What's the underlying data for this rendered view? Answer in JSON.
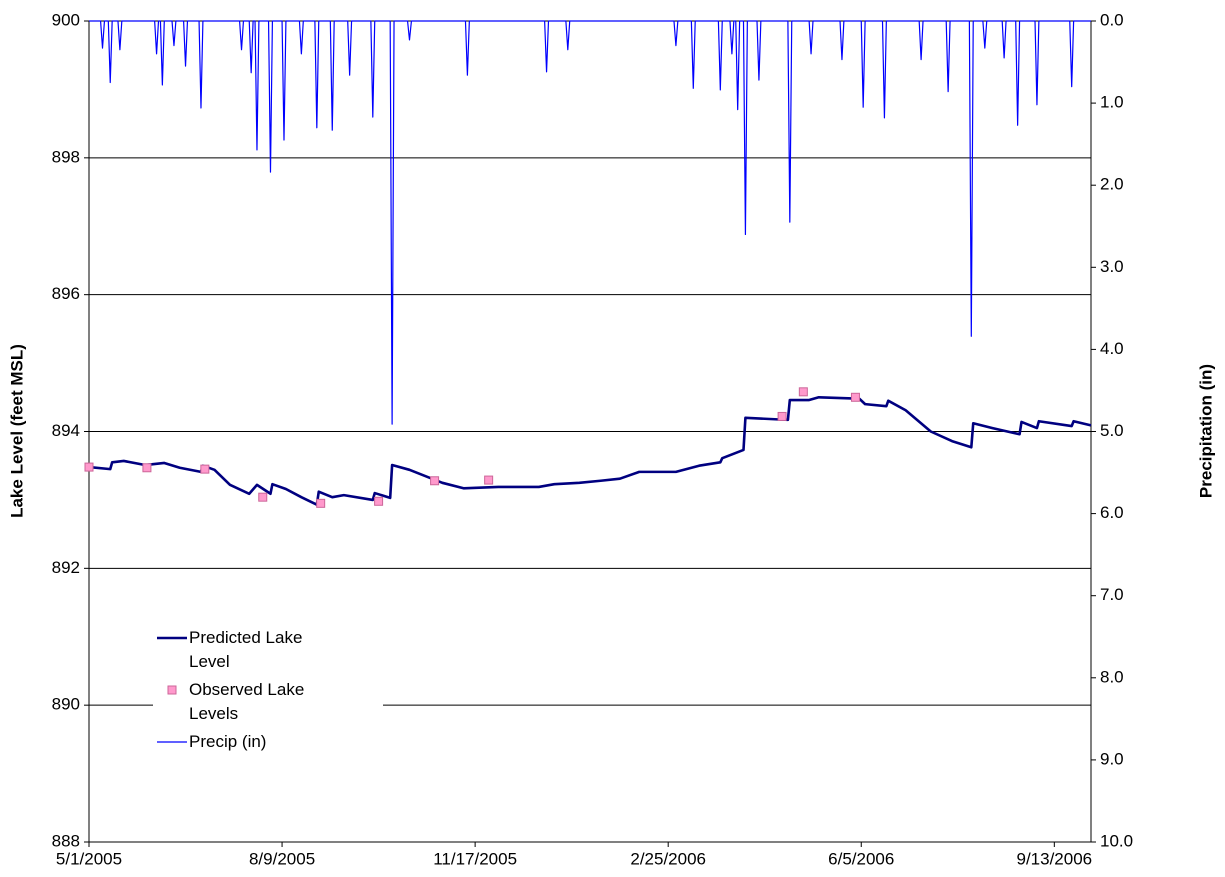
{
  "chart_data": {
    "type": "line",
    "ylabel": "Lake Level (feet MSL)",
    "y2label": "Precipitation  (in)",
    "xlim": [
      "2005-05-01",
      "2006-10-02"
    ],
    "xticks": [
      {
        "value": "2005-05-01",
        "label": "5/1/2005"
      },
      {
        "value": "2005-08-09",
        "label": "8/9/2005"
      },
      {
        "value": "2005-11-17",
        "label": "11/17/2005"
      },
      {
        "value": "2006-02-25",
        "label": "2/25/2006"
      },
      {
        "value": "2006-06-05",
        "label": "6/5/2006"
      },
      {
        "value": "2006-09-13",
        "label": "9/13/2006"
      }
    ],
    "ylim": [
      888,
      900
    ],
    "yticks": [
      888,
      890,
      892,
      894,
      896,
      898,
      900
    ],
    "y2lim": [
      10,
      0
    ],
    "y2ticks": [
      {
        "value": 0,
        "label": "0.0"
      },
      {
        "value": 1,
        "label": "1.0"
      },
      {
        "value": 2,
        "label": "2.0"
      },
      {
        "value": 3,
        "label": "3.0"
      },
      {
        "value": 4,
        "label": "4.0"
      },
      {
        "value": 5,
        "label": "5.0"
      },
      {
        "value": 6,
        "label": "6.0"
      },
      {
        "value": 7,
        "label": "7.0"
      },
      {
        "value": 8,
        "label": "8.0"
      },
      {
        "value": 9,
        "label": "9.0"
      },
      {
        "value": 10,
        "label": "10.0"
      }
    ],
    "grid": true,
    "legend": "center left",
    "series": [
      {
        "name": "Predicted Lake Level",
        "type": "line",
        "color": "#000080",
        "x": [
          "2005-05-01",
          "2005-05-12",
          "2005-05-13",
          "2005-05-19",
          "2005-05-30",
          "2005-06-09",
          "2005-06-17",
          "2005-06-28",
          "2005-06-29",
          "2005-07-05",
          "2005-07-13",
          "2005-07-23",
          "2005-07-27",
          "2005-08-03",
          "2005-08-04",
          "2005-08-11",
          "2005-08-19",
          "2005-08-27",
          "2005-08-28",
          "2005-09-04",
          "2005-09-10",
          "2005-09-25",
          "2005-09-26",
          "2005-10-04",
          "2005-10-05",
          "2005-10-14",
          "2005-10-31",
          "2005-11-11",
          "2005-11-29",
          "2005-12-20",
          "2005-12-28",
          "2006-01-10",
          "2006-01-21",
          "2006-01-31",
          "2006-02-10",
          "2006-03-01",
          "2006-03-13",
          "2006-03-24",
          "2006-03-25",
          "2006-04-05",
          "2006-04-06",
          "2006-04-28",
          "2006-04-29",
          "2006-05-09",
          "2006-05-14",
          "2006-06-04",
          "2006-06-07",
          "2006-06-18",
          "2006-06-19",
          "2006-06-28",
          "2006-07-11",
          "2006-07-22",
          "2006-08-01",
          "2006-08-02",
          "2006-08-12",
          "2006-08-26",
          "2006-08-27",
          "2006-09-04",
          "2006-09-05",
          "2006-09-22",
          "2006-09-23",
          "2006-10-02"
        ],
        "values": [
          893.48,
          893.45,
          893.55,
          893.57,
          893.51,
          893.54,
          893.47,
          893.41,
          893.5,
          893.44,
          893.22,
          893.09,
          893.22,
          893.09,
          893.23,
          893.16,
          893.04,
          892.93,
          893.12,
          893.04,
          893.07,
          893.0,
          893.1,
          893.03,
          893.51,
          893.44,
          893.25,
          893.17,
          893.19,
          893.19,
          893.23,
          893.25,
          893.28,
          893.31,
          893.41,
          893.41,
          893.5,
          893.55,
          893.61,
          893.73,
          894.2,
          894.17,
          894.46,
          894.46,
          894.5,
          894.48,
          894.4,
          894.37,
          894.45,
          894.31,
          894.0,
          893.86,
          893.77,
          894.12,
          894.05,
          893.96,
          894.14,
          894.05,
          894.15,
          894.08,
          894.15,
          894.09
        ]
      },
      {
        "name": "Observed Lake Levels",
        "type": "scatter",
        "color": "#ff99cc",
        "edgecolor": "#cc6699",
        "marker": "square",
        "x": [
          "2005-05-01",
          "2005-05-31",
          "2005-06-30",
          "2005-07-30",
          "2005-08-29",
          "2005-09-28",
          "2005-10-27",
          "2005-11-24",
          "2006-04-25",
          "2006-05-06",
          "2006-06-02"
        ],
        "values": [
          893.48,
          893.47,
          893.45,
          893.04,
          892.95,
          892.98,
          893.28,
          893.29,
          894.22,
          894.58,
          894.5
        ]
      },
      {
        "name": "Precip (in)",
        "type": "line",
        "color": "#0000ff",
        "axis": "y2",
        "x": [
          "2005-05-01",
          "2005-05-07",
          "2005-05-08",
          "2005-05-09",
          "2005-05-11",
          "2005-05-12",
          "2005-05-13",
          "2005-05-16",
          "2005-05-17",
          "2005-05-18",
          "2005-06-04",
          "2005-06-05",
          "2005-06-06",
          "2005-06-07",
          "2005-06-08",
          "2005-06-09",
          "2005-06-13",
          "2005-06-14",
          "2005-06-15",
          "2005-06-19",
          "2005-06-20",
          "2005-06-21",
          "2005-06-27",
          "2005-06-28",
          "2005-06-29",
          "2005-07-18",
          "2005-07-19",
          "2005-07-20",
          "2005-07-23",
          "2005-07-24",
          "2005-07-25",
          "2005-07-26",
          "2005-07-27",
          "2005-07-28",
          "2005-08-02",
          "2005-08-03",
          "2005-08-04",
          "2005-08-09",
          "2005-08-10",
          "2005-08-11",
          "2005-08-18",
          "2005-08-19",
          "2005-08-20",
          "2005-08-26",
          "2005-08-27",
          "2005-08-28",
          "2005-09-03",
          "2005-09-04",
          "2005-09-05",
          "2005-09-12",
          "2005-09-13",
          "2005-09-14",
          "2005-09-24",
          "2005-09-25",
          "2005-09-26",
          "2005-10-04",
          "2005-10-05",
          "2005-10-06",
          "2005-10-13",
          "2005-10-14",
          "2005-10-15",
          "2005-11-12",
          "2005-11-13",
          "2005-11-14",
          "2005-12-23",
          "2005-12-24",
          "2005-12-25",
          "2006-01-03",
          "2006-01-04",
          "2006-01-05",
          "2006-02-28",
          "2006-03-01",
          "2006-03-02",
          "2006-03-09",
          "2006-03-10",
          "2006-03-11",
          "2006-03-23",
          "2006-03-24",
          "2006-03-25",
          "2006-03-29",
          "2006-03-30",
          "2006-03-31",
          "2006-04-01",
          "2006-04-02",
          "2006-04-03",
          "2006-04-05",
          "2006-04-06",
          "2006-04-07",
          "2006-04-12",
          "2006-04-13",
          "2006-04-14",
          "2006-04-28",
          "2006-04-29",
          "2006-04-30",
          "2006-05-09",
          "2006-05-10",
          "2006-05-11",
          "2006-05-25",
          "2006-05-26",
          "2006-05-27",
          "2006-06-05",
          "2006-06-06",
          "2006-06-07",
          "2006-06-16",
          "2006-06-17",
          "2006-06-18",
          "2006-07-05",
          "2006-07-06",
          "2006-07-07",
          "2006-07-19",
          "2006-07-20",
          "2006-07-21",
          "2006-07-31",
          "2006-08-01",
          "2006-08-02",
          "2006-08-07",
          "2006-08-08",
          "2006-08-09",
          "2006-08-17",
          "2006-08-18",
          "2006-08-19",
          "2006-08-24",
          "2006-08-25",
          "2006-08-26",
          "2006-09-03",
          "2006-09-04",
          "2006-09-05",
          "2006-09-21",
          "2006-09-22",
          "2006-09-23",
          "2006-10-02"
        ],
        "values": [
          0,
          0,
          0.33,
          0,
          0,
          0.75,
          0,
          0,
          0.35,
          0,
          0,
          0.4,
          0,
          0,
          0.78,
          0,
          0,
          0.3,
          0,
          0,
          0.55,
          0,
          0,
          1.06,
          0,
          0,
          0.35,
          0,
          0,
          0.63,
          0,
          0,
          1.57,
          0,
          0,
          1.84,
          0,
          0,
          1.45,
          0,
          0,
          0.4,
          0,
          0,
          1.3,
          0,
          0,
          1.33,
          0,
          0,
          0.66,
          0,
          0,
          1.17,
          0,
          0,
          4.91,
          0,
          0,
          0.23,
          0,
          0,
          0.66,
          0,
          0,
          0.62,
          0,
          0,
          0.35,
          0,
          0,
          0.3,
          0,
          0,
          0.82,
          0,
          0,
          0.84,
          0,
          0,
          0.4,
          0,
          0,
          1.08,
          0,
          0,
          2.6,
          0,
          0,
          0.72,
          0,
          0,
          2.45,
          0,
          0,
          0.4,
          0,
          0,
          0.47,
          0,
          0,
          1.05,
          0,
          0,
          1.18,
          0,
          0,
          0.47,
          0,
          0,
          0.86,
          0,
          0,
          3.84,
          0,
          0,
          0.33,
          0,
          0,
          0.45,
          0,
          0,
          1.27,
          0,
          0,
          1.02,
          0,
          0,
          0.8,
          0,
          0
        ]
      }
    ]
  }
}
